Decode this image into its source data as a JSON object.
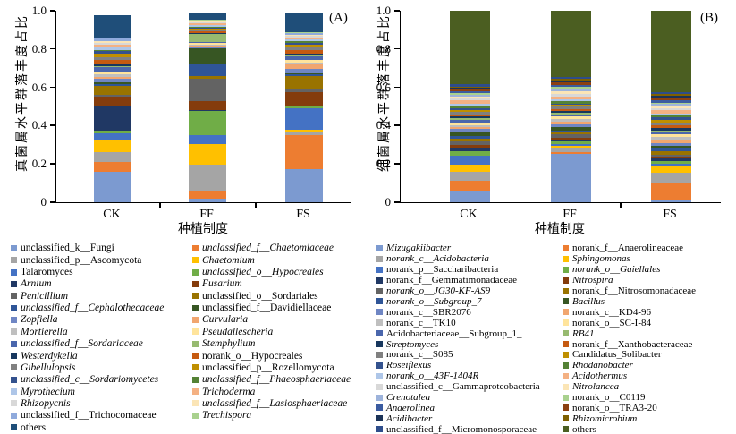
{
  "figure": {
    "background": "#FFFFFF",
    "axis_color": "#000000"
  },
  "chart_data": [
    {
      "type": "bar",
      "stacked": true,
      "panel_label": "(A)",
      "ylabel": "真菌属水平群落丰度占比",
      "xlabel": "种植制度",
      "categories": [
        "CK",
        "FF",
        "FS"
      ],
      "ylim": [
        0,
        1.0
      ],
      "y_tick_labels": [
        "0",
        "0.2",
        "0.4",
        "0.6",
        "0.8",
        "1.0"
      ],
      "legend_position": "below, two columns, column-major",
      "grid": false,
      "series": [
        {
          "name": "unclassified_k__Fungi",
          "color": "#7C9AD0",
          "italic": false,
          "values": [
            0.16,
            0.02,
            0.175
          ]
        },
        {
          "name": "unclassified_f__Chaetomiaceae",
          "color": "#ED7D31",
          "italic": true,
          "values": [
            0.05,
            0.042,
            0.174
          ]
        },
        {
          "name": "unclassified_p__Ascomycota",
          "color": "#A5A5A5",
          "italic": false,
          "values": [
            0.05,
            0.133,
            0.015
          ]
        },
        {
          "name": "Chaetomium",
          "color": "#FFC000",
          "italic": true,
          "values": [
            0.062,
            0.11,
            0.016
          ]
        },
        {
          "name": "Talaromyces",
          "color": "#4472C4",
          "italic": false,
          "values": [
            0.04,
            0.046,
            0.112
          ]
        },
        {
          "name": "unclassified_o__Hypocreales",
          "color": "#70AD47",
          "italic": true,
          "values": [
            0.012,
            0.127,
            0.01
          ]
        },
        {
          "name": "Arnium",
          "color": "#203864",
          "italic": true,
          "values": [
            0.125,
            0.004,
            0.004
          ]
        },
        {
          "name": "Fusarium",
          "color": "#843C0C",
          "italic": true,
          "values": [
            0.052,
            0.044,
            0.068
          ]
        },
        {
          "name": "Penicillium",
          "color": "#636363",
          "italic": true,
          "values": [
            0.012,
            0.121,
            0.013
          ]
        },
        {
          "name": "unclassified_o__Sordariales",
          "color": "#997300",
          "italic": false,
          "values": [
            0.044,
            0.012,
            0.07
          ]
        },
        {
          "name": "unclassified_f__Cephalothecaceae",
          "color": "#2F5597",
          "italic": true,
          "values": [
            0.012,
            0.061,
            0.011
          ]
        },
        {
          "name": "unclassified_f__Davidiellaceae",
          "color": "#375623",
          "italic": false,
          "values": [
            0.008,
            0.083,
            0.004
          ]
        },
        {
          "name": "Zopfiella",
          "color": "#6F86C4",
          "italic": true,
          "values": [
            0.018,
            0.004,
            0.026
          ]
        },
        {
          "name": "Curvularia",
          "color": "#F1A66F",
          "italic": true,
          "values": [
            0.01,
            0.01,
            0.021
          ]
        },
        {
          "name": "Mortierella",
          "color": "#BFBFBF",
          "italic": true,
          "values": [
            0.012,
            0.004,
            0.011
          ]
        },
        {
          "name": "Pseudallescheria",
          "color": "#FFE49C",
          "italic": true,
          "values": [
            0.014,
            0.01,
            0.014
          ]
        },
        {
          "name": "unclassified_f__Sordariaceae",
          "color": "#4A66AC",
          "italic": true,
          "values": [
            0.024,
            0.004,
            0.019
          ]
        },
        {
          "name": "Stemphylium",
          "color": "#97BA70",
          "italic": true,
          "values": [
            0.005,
            0.045,
            0.009
          ]
        },
        {
          "name": "Westerdykella",
          "color": "#17375E",
          "italic": true,
          "values": [
            0.014,
            0.003,
            0.004
          ]
        },
        {
          "name": "norank_o__Hypocreales",
          "color": "#C55A11",
          "italic": false,
          "values": [
            0.018,
            0.009,
            0.02
          ]
        },
        {
          "name": "Gibellulopsis",
          "color": "#808080",
          "italic": true,
          "values": [
            0.014,
            0.003,
            0.011
          ]
        },
        {
          "name": "unclassified_p__Rozellomycota",
          "color": "#BF8F00",
          "italic": false,
          "values": [
            0.018,
            0.012,
            0.014
          ]
        },
        {
          "name": "unclassified_c__Sordariomycetes",
          "color": "#33528E",
          "italic": true,
          "values": [
            0.014,
            0.004,
            0.009
          ]
        },
        {
          "name": "unclassified_f__Phaeosphaeriaceae",
          "color": "#548235",
          "italic": true,
          "values": [
            0.006,
            0.006,
            0.009
          ]
        },
        {
          "name": "Myrothecium",
          "color": "#AEC6E8",
          "italic": true,
          "values": [
            0.016,
            0.01,
            0.012
          ]
        },
        {
          "name": "Trichoderma",
          "color": "#F4B183",
          "italic": true,
          "values": [
            0.012,
            0.008,
            0.01
          ]
        },
        {
          "name": "Rhizopycnis",
          "color": "#D8D8D8",
          "italic": true,
          "values": [
            0.012,
            0.006,
            0.007
          ]
        },
        {
          "name": "unclassified_f__Lasiosphaeriaceae",
          "color": "#FBE5B6",
          "italic": true,
          "values": [
            0.008,
            0.004,
            0.008
          ]
        },
        {
          "name": "unclassified_f__Trichocomaceae",
          "color": "#8FAADC",
          "italic": false,
          "values": [
            0.014,
            0.004,
            0.008
          ]
        },
        {
          "name": "Trechispora",
          "color": "#A9D18E",
          "italic": true,
          "values": [
            0.006,
            0.003,
            0.005
          ]
        },
        {
          "name": "others",
          "color": "#1F4E79",
          "italic": false,
          "values": [
            0.115,
            0.038,
            0.1
          ]
        }
      ]
    },
    {
      "type": "bar",
      "stacked": true,
      "panel_label": "(B)",
      "ylabel": "细菌属水平群落丰度占比",
      "xlabel": "种植制度",
      "categories": [
        "CK",
        "FF",
        "FS"
      ],
      "ylim": [
        0,
        1.0
      ],
      "y_tick_labels": [
        "0",
        "0.2",
        "0.4",
        "0.6",
        "0.8",
        "1.0"
      ],
      "legend_position": "below, two columns, column-major",
      "grid": false,
      "series": [
        {
          "name": "Mizugakiibacter",
          "color": "#7C9AD0",
          "italic": true,
          "values": [
            0.06,
            0.254,
            0.008
          ]
        },
        {
          "name": "norank_f__Anaerolineaceae",
          "color": "#ED7D31",
          "italic": false,
          "values": [
            0.05,
            0.01,
            0.092
          ]
        },
        {
          "name": "norank_c__Acidobacteria",
          "color": "#A5A5A5",
          "italic": true,
          "values": [
            0.05,
            0.02,
            0.056
          ]
        },
        {
          "name": "Sphingomonas",
          "color": "#FFC000",
          "italic": true,
          "values": [
            0.035,
            0.012,
            0.034
          ]
        },
        {
          "name": "norank_p__Saccharibacteria",
          "color": "#4472C4",
          "italic": false,
          "values": [
            0.05,
            0.008,
            0.01
          ]
        },
        {
          "name": "norank_o__Gaiellales",
          "color": "#70AD47",
          "italic": true,
          "values": [
            0.02,
            0.012,
            0.013
          ]
        },
        {
          "name": "norank_f__Gemmatimonadaceae",
          "color": "#203864",
          "italic": false,
          "values": [
            0.018,
            0.01,
            0.015
          ]
        },
        {
          "name": "Nitrospira",
          "color": "#843C0C",
          "italic": true,
          "values": [
            0.015,
            0.01,
            0.01
          ]
        },
        {
          "name": "norank_o__JG30-KF-AS9",
          "color": "#636363",
          "italic": true,
          "values": [
            0.02,
            0.02,
            0.012
          ]
        },
        {
          "name": "norank_f__Nitrosomonadaceae",
          "color": "#997300",
          "italic": false,
          "values": [
            0.015,
            0.01,
            0.015
          ]
        },
        {
          "name": "norank_o__Subgroup_7",
          "color": "#2F5597",
          "italic": true,
          "values": [
            0.012,
            0.01,
            0.019
          ]
        },
        {
          "name": "Bacillus",
          "color": "#375623",
          "italic": true,
          "values": [
            0.025,
            0.018,
            0.01
          ]
        },
        {
          "name": "norank_c__SBR2076",
          "color": "#6F86C4",
          "italic": false,
          "values": [
            0.012,
            0.012,
            0.015
          ]
        },
        {
          "name": "norank_c__KD4-96",
          "color": "#F1A66F",
          "italic": false,
          "values": [
            0.012,
            0.015,
            0.016
          ]
        },
        {
          "name": "norank_c__TK10",
          "color": "#BFBFBF",
          "italic": false,
          "values": [
            0.01,
            0.015,
            0.016
          ]
        },
        {
          "name": "norank_o__SC-I-84",
          "color": "#FFE49C",
          "italic": false,
          "values": [
            0.012,
            0.012,
            0.012
          ]
        },
        {
          "name": "Acidobacteriaceae__Subgroup_1_",
          "color": "#4A66AC",
          "italic": false,
          "values": [
            0.012,
            0.01,
            0.012
          ]
        },
        {
          "name": "RB41",
          "color": "#97BA70",
          "italic": true,
          "values": [
            0.01,
            0.01,
            0.01
          ]
        },
        {
          "name": "Streptomyces",
          "color": "#17375E",
          "italic": true,
          "values": [
            0.012,
            0.01,
            0.013
          ]
        },
        {
          "name": "norank_f__Xanthobacteraceae",
          "color": "#C55A11",
          "italic": false,
          "values": [
            0.01,
            0.01,
            0.015
          ]
        },
        {
          "name": "norank_c__S085",
          "color": "#808080",
          "italic": false,
          "values": [
            0.012,
            0.01,
            0.013
          ]
        },
        {
          "name": "Candidatus_Solibacter",
          "color": "#BF8F00",
          "italic": false,
          "values": [
            0.01,
            0.01,
            0.015
          ]
        },
        {
          "name": "Roseiflexus",
          "color": "#33528E",
          "italic": true,
          "values": [
            0.01,
            0.008,
            0.013
          ]
        },
        {
          "name": "Rhodanobacter",
          "color": "#548235",
          "italic": true,
          "values": [
            0.012,
            0.01,
            0.008
          ]
        },
        {
          "name": "norank_o__43F-1404R",
          "color": "#AEC6E8",
          "italic": true,
          "values": [
            0.012,
            0.012,
            0.012
          ]
        },
        {
          "name": "Acidothermus",
          "color": "#F4B183",
          "italic": true,
          "values": [
            0.015,
            0.015,
            0.016
          ]
        },
        {
          "name": "unclassified_c__Gammaproteobacteria",
          "color": "#D8D8D8",
          "italic": false,
          "values": [
            0.01,
            0.012,
            0.01
          ]
        },
        {
          "name": "Nitrolancea",
          "color": "#FBE5B6",
          "italic": true,
          "values": [
            0.01,
            0.015,
            0.01
          ]
        },
        {
          "name": "Crenotalea",
          "color": "#9DB3DB",
          "italic": true,
          "values": [
            0.01,
            0.012,
            0.012
          ]
        },
        {
          "name": "norank_o__C0119",
          "color": "#A9D18E",
          "italic": false,
          "values": [
            0.008,
            0.01,
            0.008
          ]
        },
        {
          "name": "Anaerolinea",
          "color": "#3A5BA0",
          "italic": true,
          "values": [
            0.01,
            0.012,
            0.013
          ]
        },
        {
          "name": "norank_o__TRA3-20",
          "color": "#8C4010",
          "italic": false,
          "values": [
            0.008,
            0.012,
            0.01
          ]
        },
        {
          "name": "Acidibacter",
          "color": "#1B3357",
          "italic": true,
          "values": [
            0.01,
            0.01,
            0.013
          ]
        },
        {
          "name": "Rhizomicrobium",
          "color": "#7F6000",
          "italic": true,
          "values": [
            0.008,
            0.008,
            0.008
          ]
        },
        {
          "name": "unclassified_f__Micromonosporaceae",
          "color": "#2E4D8B",
          "italic": false,
          "values": [
            0.01,
            0.012,
            0.01
          ]
        },
        {
          "name": "others",
          "color": "#4B5E21",
          "italic": false,
          "values": [
            0.385,
            0.344,
            0.426
          ]
        }
      ]
    }
  ]
}
